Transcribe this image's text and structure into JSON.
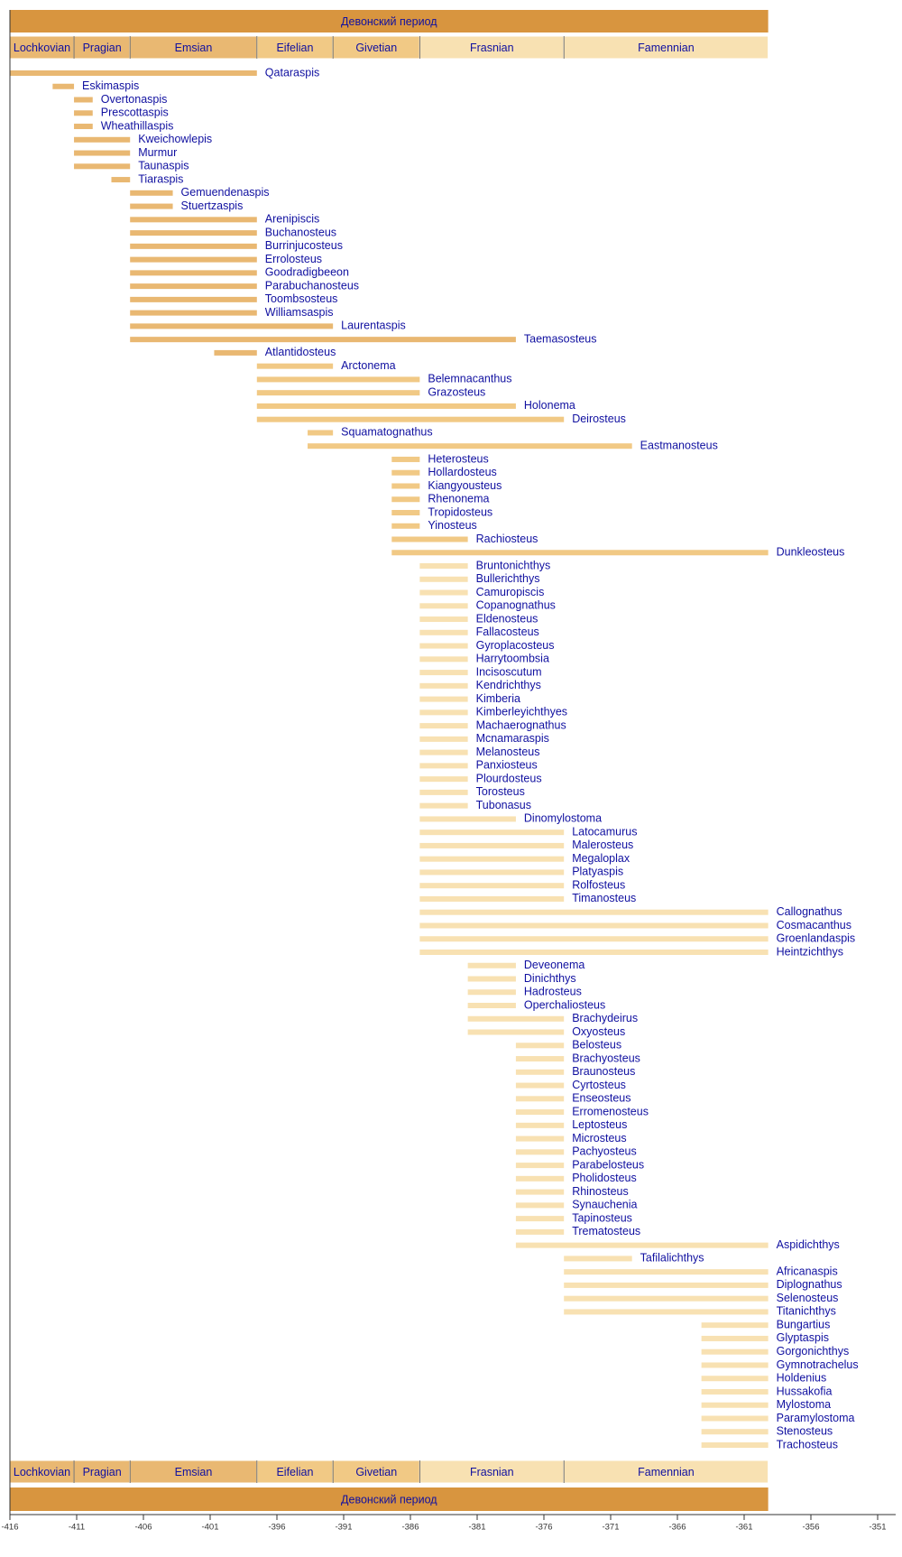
{
  "chart_data": {
    "type": "timeline",
    "title": "Девонский период",
    "period": {
      "start": -416,
      "end": -359.2,
      "color": "#d8953f"
    },
    "stages": [
      {
        "name": "Lochkovian",
        "start": -416,
        "end": -411.2,
        "color": "#e9b872"
      },
      {
        "name": "Pragian",
        "start": -411.2,
        "end": -407,
        "color": "#e9b872"
      },
      {
        "name": "Emsian",
        "start": -407,
        "end": -397.5,
        "color": "#e9b872"
      },
      {
        "name": "Eifelian",
        "start": -397.5,
        "end": -391.8,
        "color": "#f1c985"
      },
      {
        "name": "Givetian",
        "start": -391.8,
        "end": -385.3,
        "color": "#f1c985"
      },
      {
        "name": "Frasnian",
        "start": -385.3,
        "end": -374.5,
        "color": "#f8e1b2"
      },
      {
        "name": "Famennian",
        "start": -374.5,
        "end": -359.2,
        "color": "#f8e1b2"
      }
    ],
    "taxa": [
      {
        "name": "Qataraspis",
        "start": -416,
        "end": -397.5
      },
      {
        "name": "Eskimaspis",
        "start": -412.8,
        "end": -411.2
      },
      {
        "name": "Overtonaspis",
        "start": -411.2,
        "end": -409.8
      },
      {
        "name": "Prescottaspis",
        "start": -411.2,
        "end": -409.8
      },
      {
        "name": "Wheathillaspis",
        "start": -411.2,
        "end": -409.8
      },
      {
        "name": "Kweichowlepis",
        "start": -411.2,
        "end": -407
      },
      {
        "name": "Murmur",
        "start": -411.2,
        "end": -407
      },
      {
        "name": "Taunaspis",
        "start": -411.2,
        "end": -407
      },
      {
        "name": "Tiaraspis",
        "start": -408.4,
        "end": -407
      },
      {
        "name": "Gemuendenaspis",
        "start": -407,
        "end": -403.8
      },
      {
        "name": "Stuertzaspis",
        "start": -407,
        "end": -403.8
      },
      {
        "name": "Arenipiscis",
        "start": -407,
        "end": -397.5
      },
      {
        "name": "Buchanosteus",
        "start": -407,
        "end": -397.5
      },
      {
        "name": "Burrinjucosteus",
        "start": -407,
        "end": -397.5
      },
      {
        "name": "Errolosteus",
        "start": -407,
        "end": -397.5
      },
      {
        "name": "Goodradigbeeon",
        "start": -407,
        "end": -397.5
      },
      {
        "name": "Parabuchanosteus",
        "start": -407,
        "end": -397.5
      },
      {
        "name": "Toombsosteus",
        "start": -407,
        "end": -397.5
      },
      {
        "name": "Williamsaspis",
        "start": -407,
        "end": -397.5
      },
      {
        "name": "Laurentaspis",
        "start": -407,
        "end": -391.8
      },
      {
        "name": "Taemasosteus",
        "start": -407,
        "end": -378.1
      },
      {
        "name": "Atlantidosteus",
        "start": -400.7,
        "end": -397.5
      },
      {
        "name": "Arctonema",
        "start": -397.5,
        "end": -391.8
      },
      {
        "name": "Belemnacanthus",
        "start": -397.5,
        "end": -385.3
      },
      {
        "name": "Grazosteus",
        "start": -397.5,
        "end": -385.3
      },
      {
        "name": "Holonema",
        "start": -397.5,
        "end": -378.1
      },
      {
        "name": "Deirosteus",
        "start": -397.5,
        "end": -374.5
      },
      {
        "name": "Squamatognathus",
        "start": -393.7,
        "end": -391.8
      },
      {
        "name": "Eastmanosteus",
        "start": -393.7,
        "end": -369.4
      },
      {
        "name": "Heterosteus",
        "start": -387.4,
        "end": -385.3
      },
      {
        "name": "Hollardosteus",
        "start": -387.4,
        "end": -385.3
      },
      {
        "name": "Kiangyousteus",
        "start": -387.4,
        "end": -385.3
      },
      {
        "name": "Rhenonema",
        "start": -387.4,
        "end": -385.3
      },
      {
        "name": "Tropidosteus",
        "start": -387.4,
        "end": -385.3
      },
      {
        "name": "Yinosteus",
        "start": -387.4,
        "end": -385.3
      },
      {
        "name": "Rachiosteus",
        "start": -387.4,
        "end": -381.7
      },
      {
        "name": "Dunkleosteus",
        "start": -387.4,
        "end": -359.2
      },
      {
        "name": "Bruntonichthys",
        "start": -385.3,
        "end": -381.7
      },
      {
        "name": "Bullerichthys",
        "start": -385.3,
        "end": -381.7
      },
      {
        "name": "Camuropiscis",
        "start": -385.3,
        "end": -381.7
      },
      {
        "name": "Copanognathus",
        "start": -385.3,
        "end": -381.7
      },
      {
        "name": "Eldenosteus",
        "start": -385.3,
        "end": -381.7
      },
      {
        "name": "Fallacosteus",
        "start": -385.3,
        "end": -381.7
      },
      {
        "name": "Gyroplacosteus",
        "start": -385.3,
        "end": -381.7
      },
      {
        "name": "Harrytoombsia",
        "start": -385.3,
        "end": -381.7
      },
      {
        "name": "Incisoscutum",
        "start": -385.3,
        "end": -381.7
      },
      {
        "name": "Kendrichthys",
        "start": -385.3,
        "end": -381.7
      },
      {
        "name": "Kimberia",
        "start": -385.3,
        "end": -381.7
      },
      {
        "name": "Kimberleyichthyes",
        "start": -385.3,
        "end": -381.7
      },
      {
        "name": "Machaerognathus",
        "start": -385.3,
        "end": -381.7
      },
      {
        "name": "Mcnamaraspis",
        "start": -385.3,
        "end": -381.7
      },
      {
        "name": "Melanosteus",
        "start": -385.3,
        "end": -381.7
      },
      {
        "name": "Panxiosteus",
        "start": -385.3,
        "end": -381.7
      },
      {
        "name": "Plourdosteus",
        "start": -385.3,
        "end": -381.7
      },
      {
        "name": "Torosteus",
        "start": -385.3,
        "end": -381.7
      },
      {
        "name": "Tubonasus",
        "start": -385.3,
        "end": -381.7
      },
      {
        "name": "Dinomylostoma",
        "start": -385.3,
        "end": -378.1
      },
      {
        "name": "Latocamurus",
        "start": -385.3,
        "end": -374.5
      },
      {
        "name": "Malerosteus",
        "start": -385.3,
        "end": -374.5
      },
      {
        "name": "Megaloplax",
        "start": -385.3,
        "end": -374.5
      },
      {
        "name": "Platyaspis",
        "start": -385.3,
        "end": -374.5
      },
      {
        "name": "Rolfosteus",
        "start": -385.3,
        "end": -374.5
      },
      {
        "name": "Timanosteus",
        "start": -385.3,
        "end": -374.5
      },
      {
        "name": "Callognathus",
        "start": -385.3,
        "end": -359.2
      },
      {
        "name": "Cosmacanthus",
        "start": -385.3,
        "end": -359.2
      },
      {
        "name": "Groenlandaspis",
        "start": -385.3,
        "end": -359.2
      },
      {
        "name": "Heintzichthys",
        "start": -385.3,
        "end": -359.2
      },
      {
        "name": "Deveonema",
        "start": -381.7,
        "end": -378.1
      },
      {
        "name": "Dinichthys",
        "start": -381.7,
        "end": -378.1
      },
      {
        "name": "Hadrosteus",
        "start": -381.7,
        "end": -378.1
      },
      {
        "name": "Operchaliosteus",
        "start": -381.7,
        "end": -378.1
      },
      {
        "name": "Brachydeirus",
        "start": -381.7,
        "end": -374.5
      },
      {
        "name": "Oxyosteus",
        "start": -381.7,
        "end": -374.5
      },
      {
        "name": "Belosteus",
        "start": -378.1,
        "end": -374.5
      },
      {
        "name": "Brachyosteus",
        "start": -378.1,
        "end": -374.5
      },
      {
        "name": "Braunosteus",
        "start": -378.1,
        "end": -374.5
      },
      {
        "name": "Cyrtosteus",
        "start": -378.1,
        "end": -374.5
      },
      {
        "name": "Enseosteus",
        "start": -378.1,
        "end": -374.5
      },
      {
        "name": "Erromenosteus",
        "start": -378.1,
        "end": -374.5
      },
      {
        "name": "Leptosteus",
        "start": -378.1,
        "end": -374.5
      },
      {
        "name": "Microsteus",
        "start": -378.1,
        "end": -374.5
      },
      {
        "name": "Pachyosteus",
        "start": -378.1,
        "end": -374.5
      },
      {
        "name": "Parabelosteus",
        "start": -378.1,
        "end": -374.5
      },
      {
        "name": "Pholidosteus",
        "start": -378.1,
        "end": -374.5
      },
      {
        "name": "Rhinosteus",
        "start": -378.1,
        "end": -374.5
      },
      {
        "name": "Synauchenia",
        "start": -378.1,
        "end": -374.5
      },
      {
        "name": "Tapinosteus",
        "start": -378.1,
        "end": -374.5
      },
      {
        "name": "Trematosteus",
        "start": -378.1,
        "end": -374.5
      },
      {
        "name": "Aspidichthys",
        "start": -378.1,
        "end": -359.2
      },
      {
        "name": "Tafilalichthys",
        "start": -374.5,
        "end": -369.4
      },
      {
        "name": "Africanaspis",
        "start": -374.5,
        "end": -359.2
      },
      {
        "name": "Diplognathus",
        "start": -374.5,
        "end": -359.2
      },
      {
        "name": "Selenosteus",
        "start": -374.5,
        "end": -359.2
      },
      {
        "name": "Titanichthys",
        "start": -374.5,
        "end": -359.2
      },
      {
        "name": "Bungartius",
        "start": -364.2,
        "end": -359.2
      },
      {
        "name": "Glyptaspis",
        "start": -364.2,
        "end": -359.2
      },
      {
        "name": "Gorgonichthys",
        "start": -364.2,
        "end": -359.2
      },
      {
        "name": "Gymnotrachelus",
        "start": -364.2,
        "end": -359.2
      },
      {
        "name": "Holdenius",
        "start": -364.2,
        "end": -359.2
      },
      {
        "name": "Hussakofia",
        "start": -364.2,
        "end": -359.2
      },
      {
        "name": "Mylostoma",
        "start": -364.2,
        "end": -359.2
      },
      {
        "name": "Paramylostoma",
        "start": -364.2,
        "end": -359.2
      },
      {
        "name": "Stenosteus",
        "start": -364.2,
        "end": -359.2
      },
      {
        "name": "Trachosteus",
        "start": -364.2,
        "end": -359.2
      }
    ],
    "xlim": [
      -416,
      -351
    ],
    "xticks": [
      -416,
      -411,
      -406,
      -401,
      -396,
      -391,
      -386,
      -381,
      -376,
      -371,
      -366,
      -361,
      -356,
      -351
    ]
  }
}
